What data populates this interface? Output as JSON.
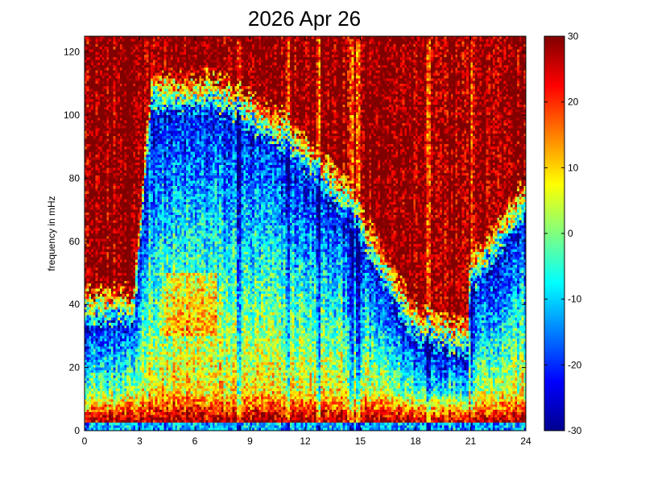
{
  "chart_data": {
    "type": "heatmap",
    "title": "2026 Apr 26",
    "xlabel": "",
    "ylabel": "frequency in mHz",
    "xlim": [
      0,
      24
    ],
    "ylim": [
      0,
      125
    ],
    "x_ticks": [
      "0",
      "3",
      "6",
      "9",
      "12",
      "15",
      "18",
      "21",
      "24"
    ],
    "y_ticks": [
      "0",
      "20",
      "40",
      "60",
      "80",
      "100",
      "120"
    ],
    "colorbar": {
      "range": [
        -30,
        30
      ],
      "ticks": [
        "-30",
        "-20",
        "-10",
        "0",
        "10",
        "20",
        "30"
      ],
      "colormap": "jet"
    },
    "grid": false
  }
}
